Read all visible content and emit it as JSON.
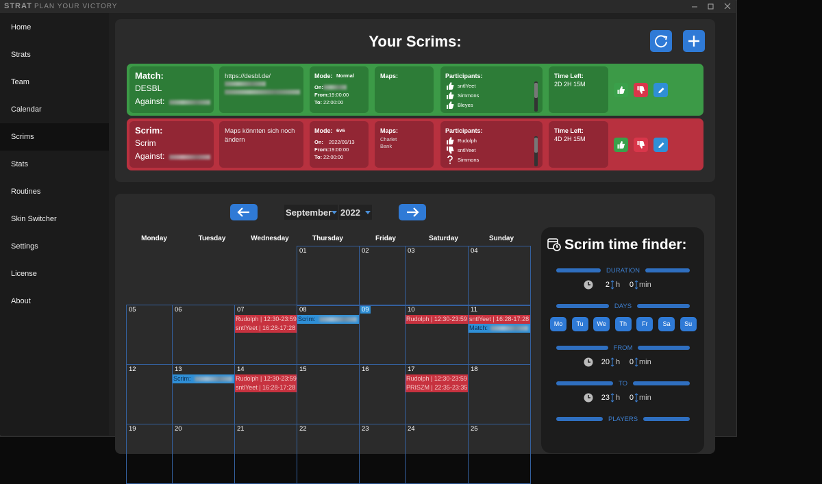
{
  "window": {
    "logo": "STRAT",
    "tagline": "PLAN YOUR VICTORY"
  },
  "sidebar": {
    "items": [
      "Home",
      "Strats",
      "Team",
      "Calendar",
      "Scrims",
      "Stats",
      "Routines",
      "Skin Switcher",
      "Settings",
      "License",
      "About"
    ],
    "selected": 4
  },
  "scrims": {
    "title": "Your Scrims:",
    "cards": [
      {
        "color": "#3c9a47",
        "inner": "#2d7c37",
        "kind": "Match:",
        "name": "DESBL",
        "against": "Against:",
        "note": "https://desbl.de/",
        "note_blurred": true,
        "mode_label": "Mode:",
        "mode": "Normal",
        "on_label": "On:",
        "from_label": "From:",
        "from": "19:00:00",
        "to_label": "To:",
        "to": "22:00:00",
        "maps_label": "Maps:",
        "maps": [],
        "participants_label": "Participants:",
        "participants": [
          {
            "name": "sntlYeet",
            "status": "yes"
          },
          {
            "name": "Simmons",
            "status": "yes"
          },
          {
            "name": "Bleyes",
            "status": "yes"
          }
        ],
        "time_left_label": "Time Left:",
        "time_left": "2D 2H 15M"
      },
      {
        "color": "#b8313f",
        "inner": "#922634",
        "kind": "Scrim:",
        "name": "Scrim",
        "against": "Against:",
        "note": "Maps könnten sich noch ändern",
        "mode_label": "Mode:",
        "mode": "6v6",
        "on_label": "On:",
        "on": "2022/09/13",
        "from_label": "From:",
        "from": "19:00:00",
        "to_label": "To:",
        "to": "22:00:00",
        "maps_label": "Maps:",
        "maps": [
          "Charlet",
          "Bank"
        ],
        "participants_label": "Participants:",
        "participants": [
          {
            "name": "Rudolph",
            "status": "yes"
          },
          {
            "name": "sntlYeet",
            "status": "no"
          },
          {
            "name": "Simmons",
            "status": "unknown"
          }
        ],
        "time_left_label": "Time Left:",
        "time_left": "4D 2H 15M"
      }
    ]
  },
  "calendar": {
    "month": "September",
    "year": "2022",
    "weekdays": [
      "Monday",
      "Tuesday",
      "Wednesday",
      "Thursday",
      "Friday",
      "Saturday",
      "Sunday"
    ],
    "weeks": [
      [
        null,
        null,
        null,
        {
          "date": "01"
        },
        {
          "date": "02"
        },
        {
          "date": "03"
        },
        {
          "date": "04"
        }
      ],
      [
        {
          "date": "05"
        },
        {
          "date": "06"
        },
        {
          "date": "07",
          "events": [
            {
              "text": "Rudolph | 12:30-23:59",
              "type": "person"
            },
            {
              "text": "sntlYeet | 16:28-17:28",
              "type": "person"
            }
          ]
        },
        {
          "date": "08",
          "events": [
            {
              "text": "Scrim:",
              "type": "scrim",
              "blurred": true
            }
          ]
        },
        {
          "date": "09",
          "today": true
        },
        {
          "date": "10",
          "events": [
            {
              "text": "Rudolph | 12:30-23:59",
              "type": "person"
            }
          ]
        },
        {
          "date": "11",
          "events": [
            {
              "text": "sntlYeet | 16:28-17:28",
              "type": "person"
            },
            {
              "text": "Match:",
              "type": "scrim",
              "blurred": true
            }
          ]
        }
      ],
      [
        {
          "date": "12"
        },
        {
          "date": "13",
          "events": [
            {
              "text": "Scrim:",
              "type": "scrim",
              "blurred": true
            }
          ]
        },
        {
          "date": "14",
          "events": [
            {
              "text": "Rudolph | 12:30-23:59",
              "type": "person"
            },
            {
              "text": "sntlYeet | 16:28-17:28",
              "type": "person"
            }
          ]
        },
        {
          "date": "15"
        },
        {
          "date": "16"
        },
        {
          "date": "17",
          "events": [
            {
              "text": "Rudolph | 12:30-23:59",
              "type": "person"
            },
            {
              "text": "PRISZM | 22:35-23:35",
              "type": "person"
            }
          ]
        },
        {
          "date": "18"
        }
      ],
      [
        {
          "date": "19"
        },
        {
          "date": "20"
        },
        {
          "date": "21"
        },
        {
          "date": "22"
        },
        {
          "date": "23"
        },
        {
          "date": "24"
        },
        {
          "date": "25"
        }
      ]
    ]
  },
  "finder": {
    "title": "Scrim time finder:",
    "hour_unit": "h",
    "minute_unit": "min",
    "duration_label": "DURATION",
    "duration": {
      "hours": 2,
      "minutes": 0
    },
    "days_label": "DAYS",
    "days": [
      "Mo",
      "Tu",
      "We",
      "Th",
      "Fr",
      "Sa",
      "Su"
    ],
    "from_label": "FROM",
    "from": {
      "hours": 20,
      "minutes": 0
    },
    "to_label": "TO",
    "to": {
      "hours": 23,
      "minutes": 0
    },
    "players_label": "PLAYERS"
  }
}
